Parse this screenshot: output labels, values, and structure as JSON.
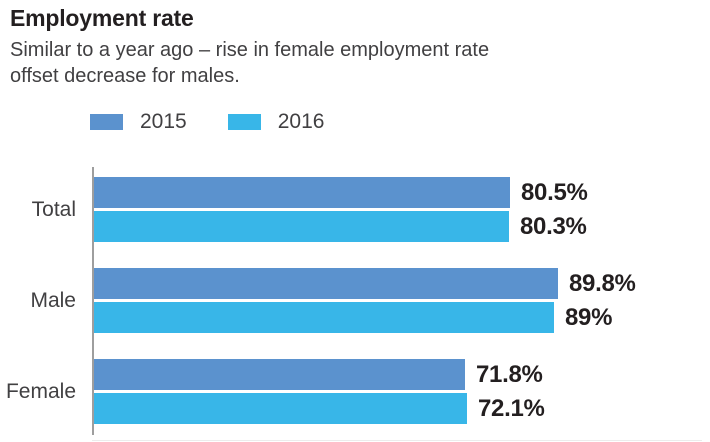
{
  "header": {
    "title": "Employment rate",
    "subtitle_line1": "Similar to a year ago – rise in female employment rate",
    "subtitle_line2": "offset decrease for males."
  },
  "legend": [
    {
      "label": "2015",
      "color": "#5b92ce"
    },
    {
      "label": "2016",
      "color": "#38b6e8"
    }
  ],
  "chart_data": {
    "type": "bar",
    "orientation": "horizontal",
    "title": "Employment rate",
    "subtitle": "Similar to a year ago – rise in female employment rate offset decrease for males.",
    "categories": [
      "Total",
      "Male",
      "Female"
    ],
    "series": [
      {
        "name": "2015",
        "color": "#5b92ce",
        "values": [
          80.5,
          89.8,
          71.8
        ],
        "labels": [
          "80.5%",
          "89.8%",
          "71.8%"
        ]
      },
      {
        "name": "2016",
        "color": "#38b6e8",
        "values": [
          80.3,
          89.0,
          72.1
        ],
        "labels": [
          "80.3%",
          "89%",
          "72.1%"
        ]
      }
    ],
    "xlim": [
      0,
      100
    ],
    "value_suffix": "%",
    "legend_position": "top-left",
    "grid": false,
    "axis_color": "#9e9e9e",
    "value_label_color": "#231f20",
    "category_label_color": "#414042"
  }
}
